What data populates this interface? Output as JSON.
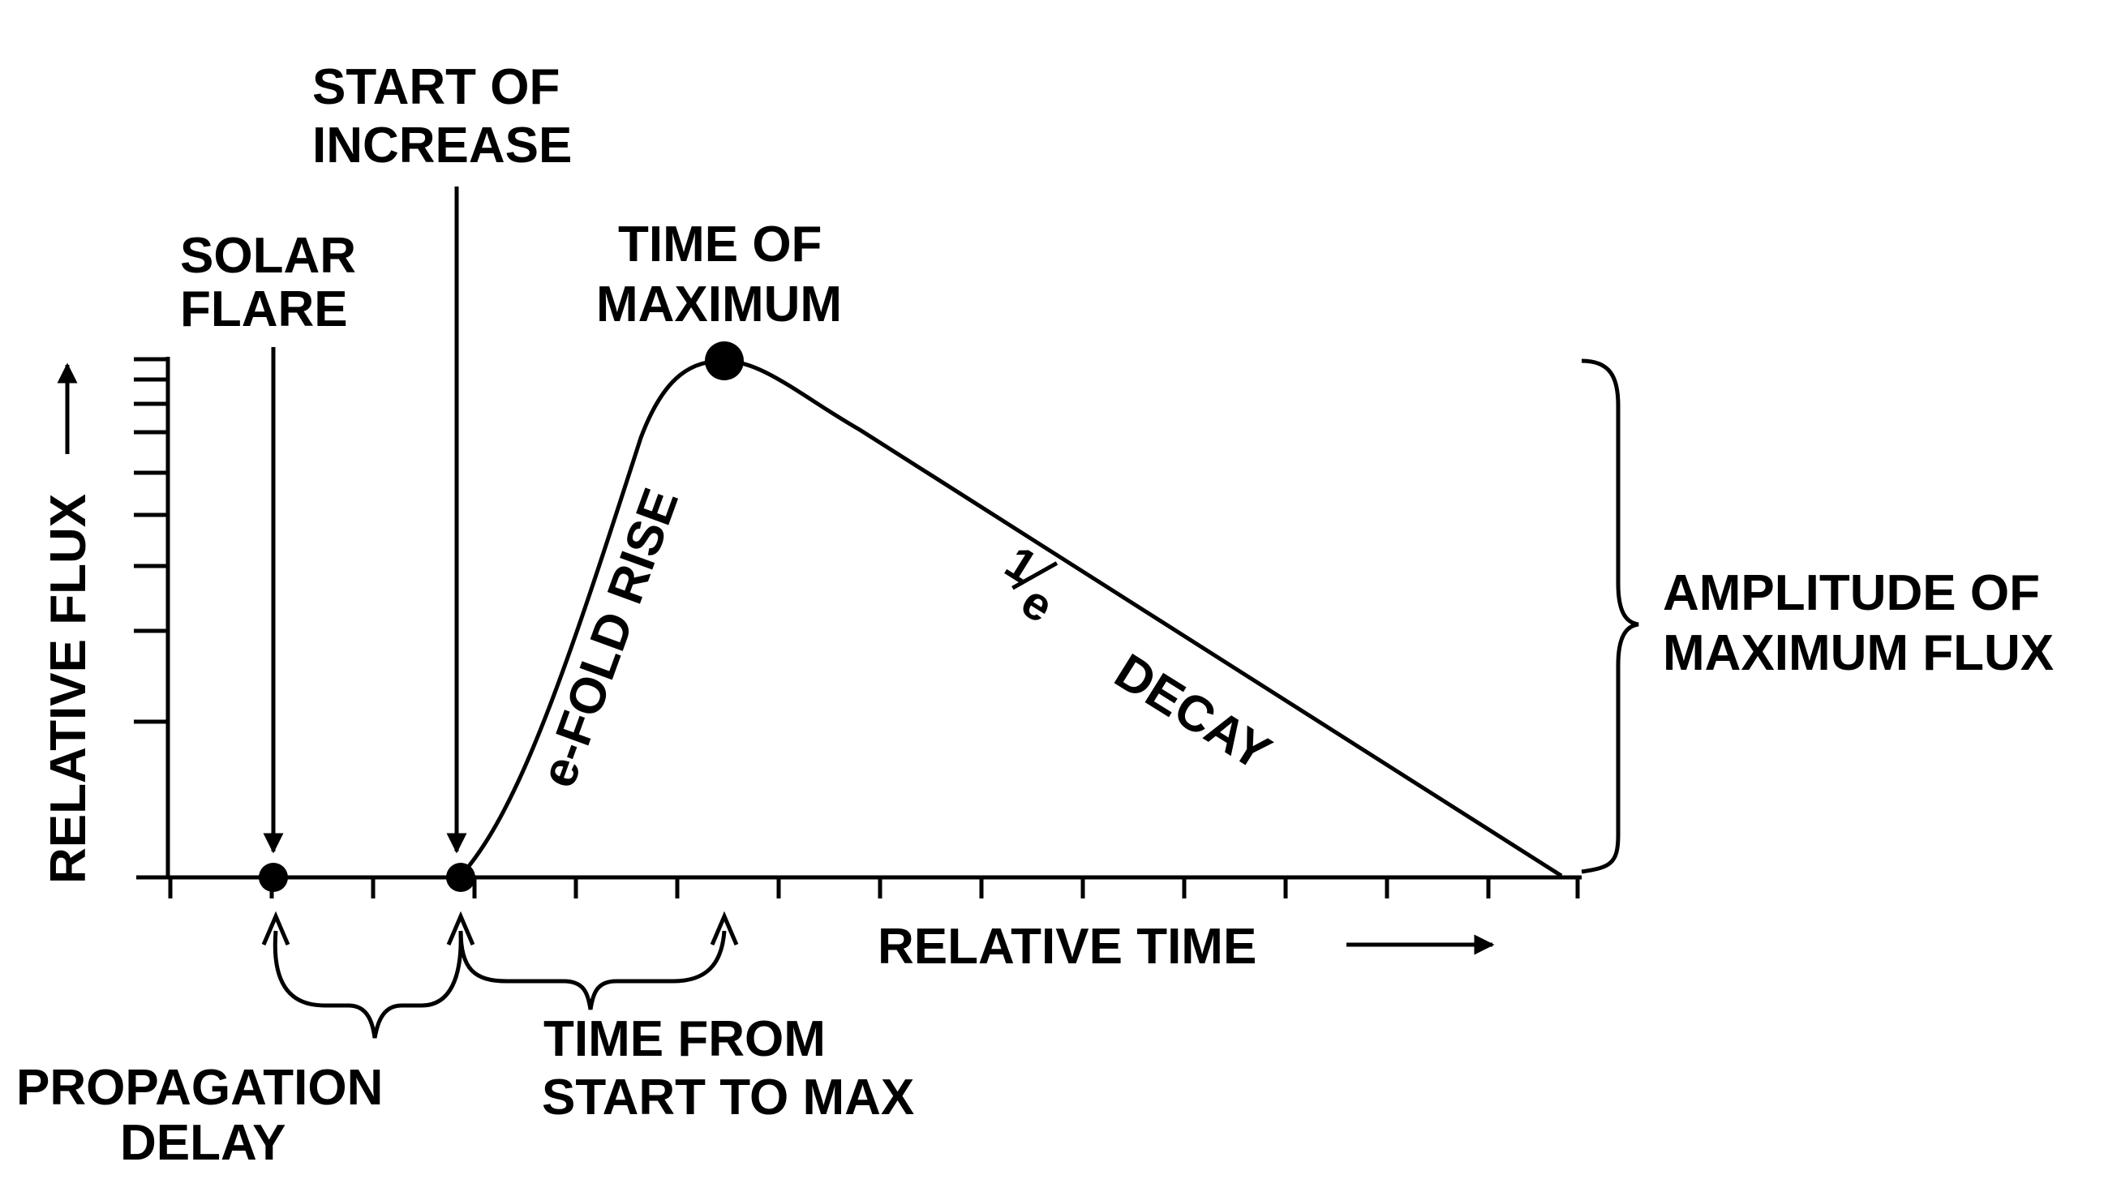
{
  "labels": {
    "start_of_increase_1": "START OF",
    "start_of_increase_2": "INCREASE",
    "solar_flare_1": "SOLAR",
    "solar_flare_2": "FLARE",
    "time_of_maximum_1": "TIME OF",
    "time_of_maximum_2": "MAXIMUM",
    "y_axis": "RELATIVE FLUX",
    "x_axis": "RELATIVE TIME",
    "rise": "e-FOLD RISE",
    "decay_fraction_num": "1",
    "decay_fraction_den": "e",
    "decay": "DECAY",
    "amplitude_1": "AMPLITUDE OF",
    "amplitude_2": "MAXIMUM FLUX",
    "propagation_1": "PROPAGATION",
    "propagation_2": "DELAY",
    "time_from_1": "TIME FROM",
    "time_from_2": "START TO MAX"
  },
  "colors": {
    "ink": "#000000",
    "background": "#ffffff"
  }
}
